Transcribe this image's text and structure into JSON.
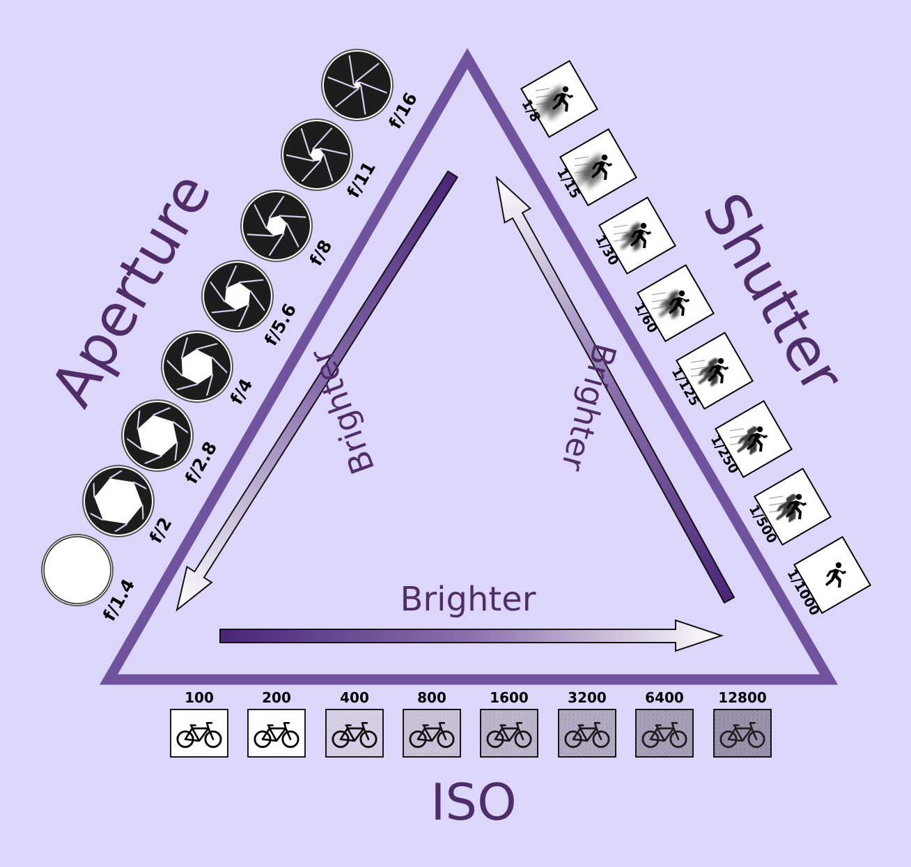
{
  "title_aperture": "Aperture",
  "title_shutter": "Shutter",
  "title_iso": "ISO",
  "arrow_label_left": "Brighter",
  "arrow_label_right": "Brighter",
  "arrow_label_bottom": "Brighter",
  "aperture_stops": [
    "f/1.4",
    "f/2",
    "f/2.8",
    "f/4",
    "f/5.6",
    "f/8",
    "f/11",
    "f/16"
  ],
  "shutter_speeds": [
    "1/8",
    "1/15",
    "1/30",
    "1/60",
    "1/125",
    "1/250",
    "1/500",
    "1/1000"
  ],
  "iso_values": [
    "100",
    "200",
    "400",
    "800",
    "1600",
    "3200",
    "6400",
    "12800"
  ],
  "icons": {
    "aperture": "aperture-blade-icon",
    "shutter": "running-person-icon",
    "iso": "bicycle-icon"
  },
  "colors": {
    "background": "#dcd6fb",
    "triangle": "#6f539c",
    "text": "#4f2d68",
    "arrow_dark": "#4a2577"
  }
}
